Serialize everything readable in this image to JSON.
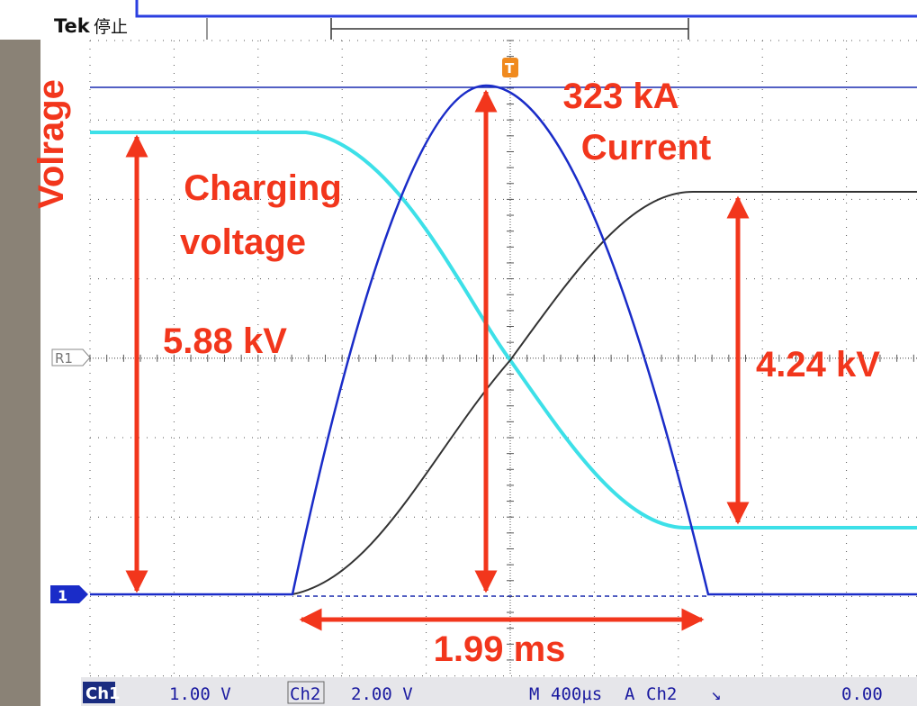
{
  "header": {
    "brand": "Tek",
    "status": "停止"
  },
  "markers": {
    "reference": "R1",
    "channel": "1",
    "trigger": "T"
  },
  "annotations": {
    "axis_label": "Volrage",
    "charging_voltage": [
      "Charging",
      "voltage"
    ],
    "charging_value": "5.88 kV",
    "peak_current_value": "323 kA",
    "peak_current_label": "Current",
    "residual_value": "4.24 kV",
    "duration": "1.99 ms"
  },
  "status_bar": {
    "ch1": "Ch1",
    "ch1_scale": "1.00 V",
    "ch2": "Ch2",
    "ch2_scale": "2.00 V",
    "timebase_label": "M",
    "timebase": "400µs",
    "trigger_mode": "A",
    "trigger_source": "Ch2",
    "trigger_slope": "↘",
    "trigger_level": "0.00"
  }
}
